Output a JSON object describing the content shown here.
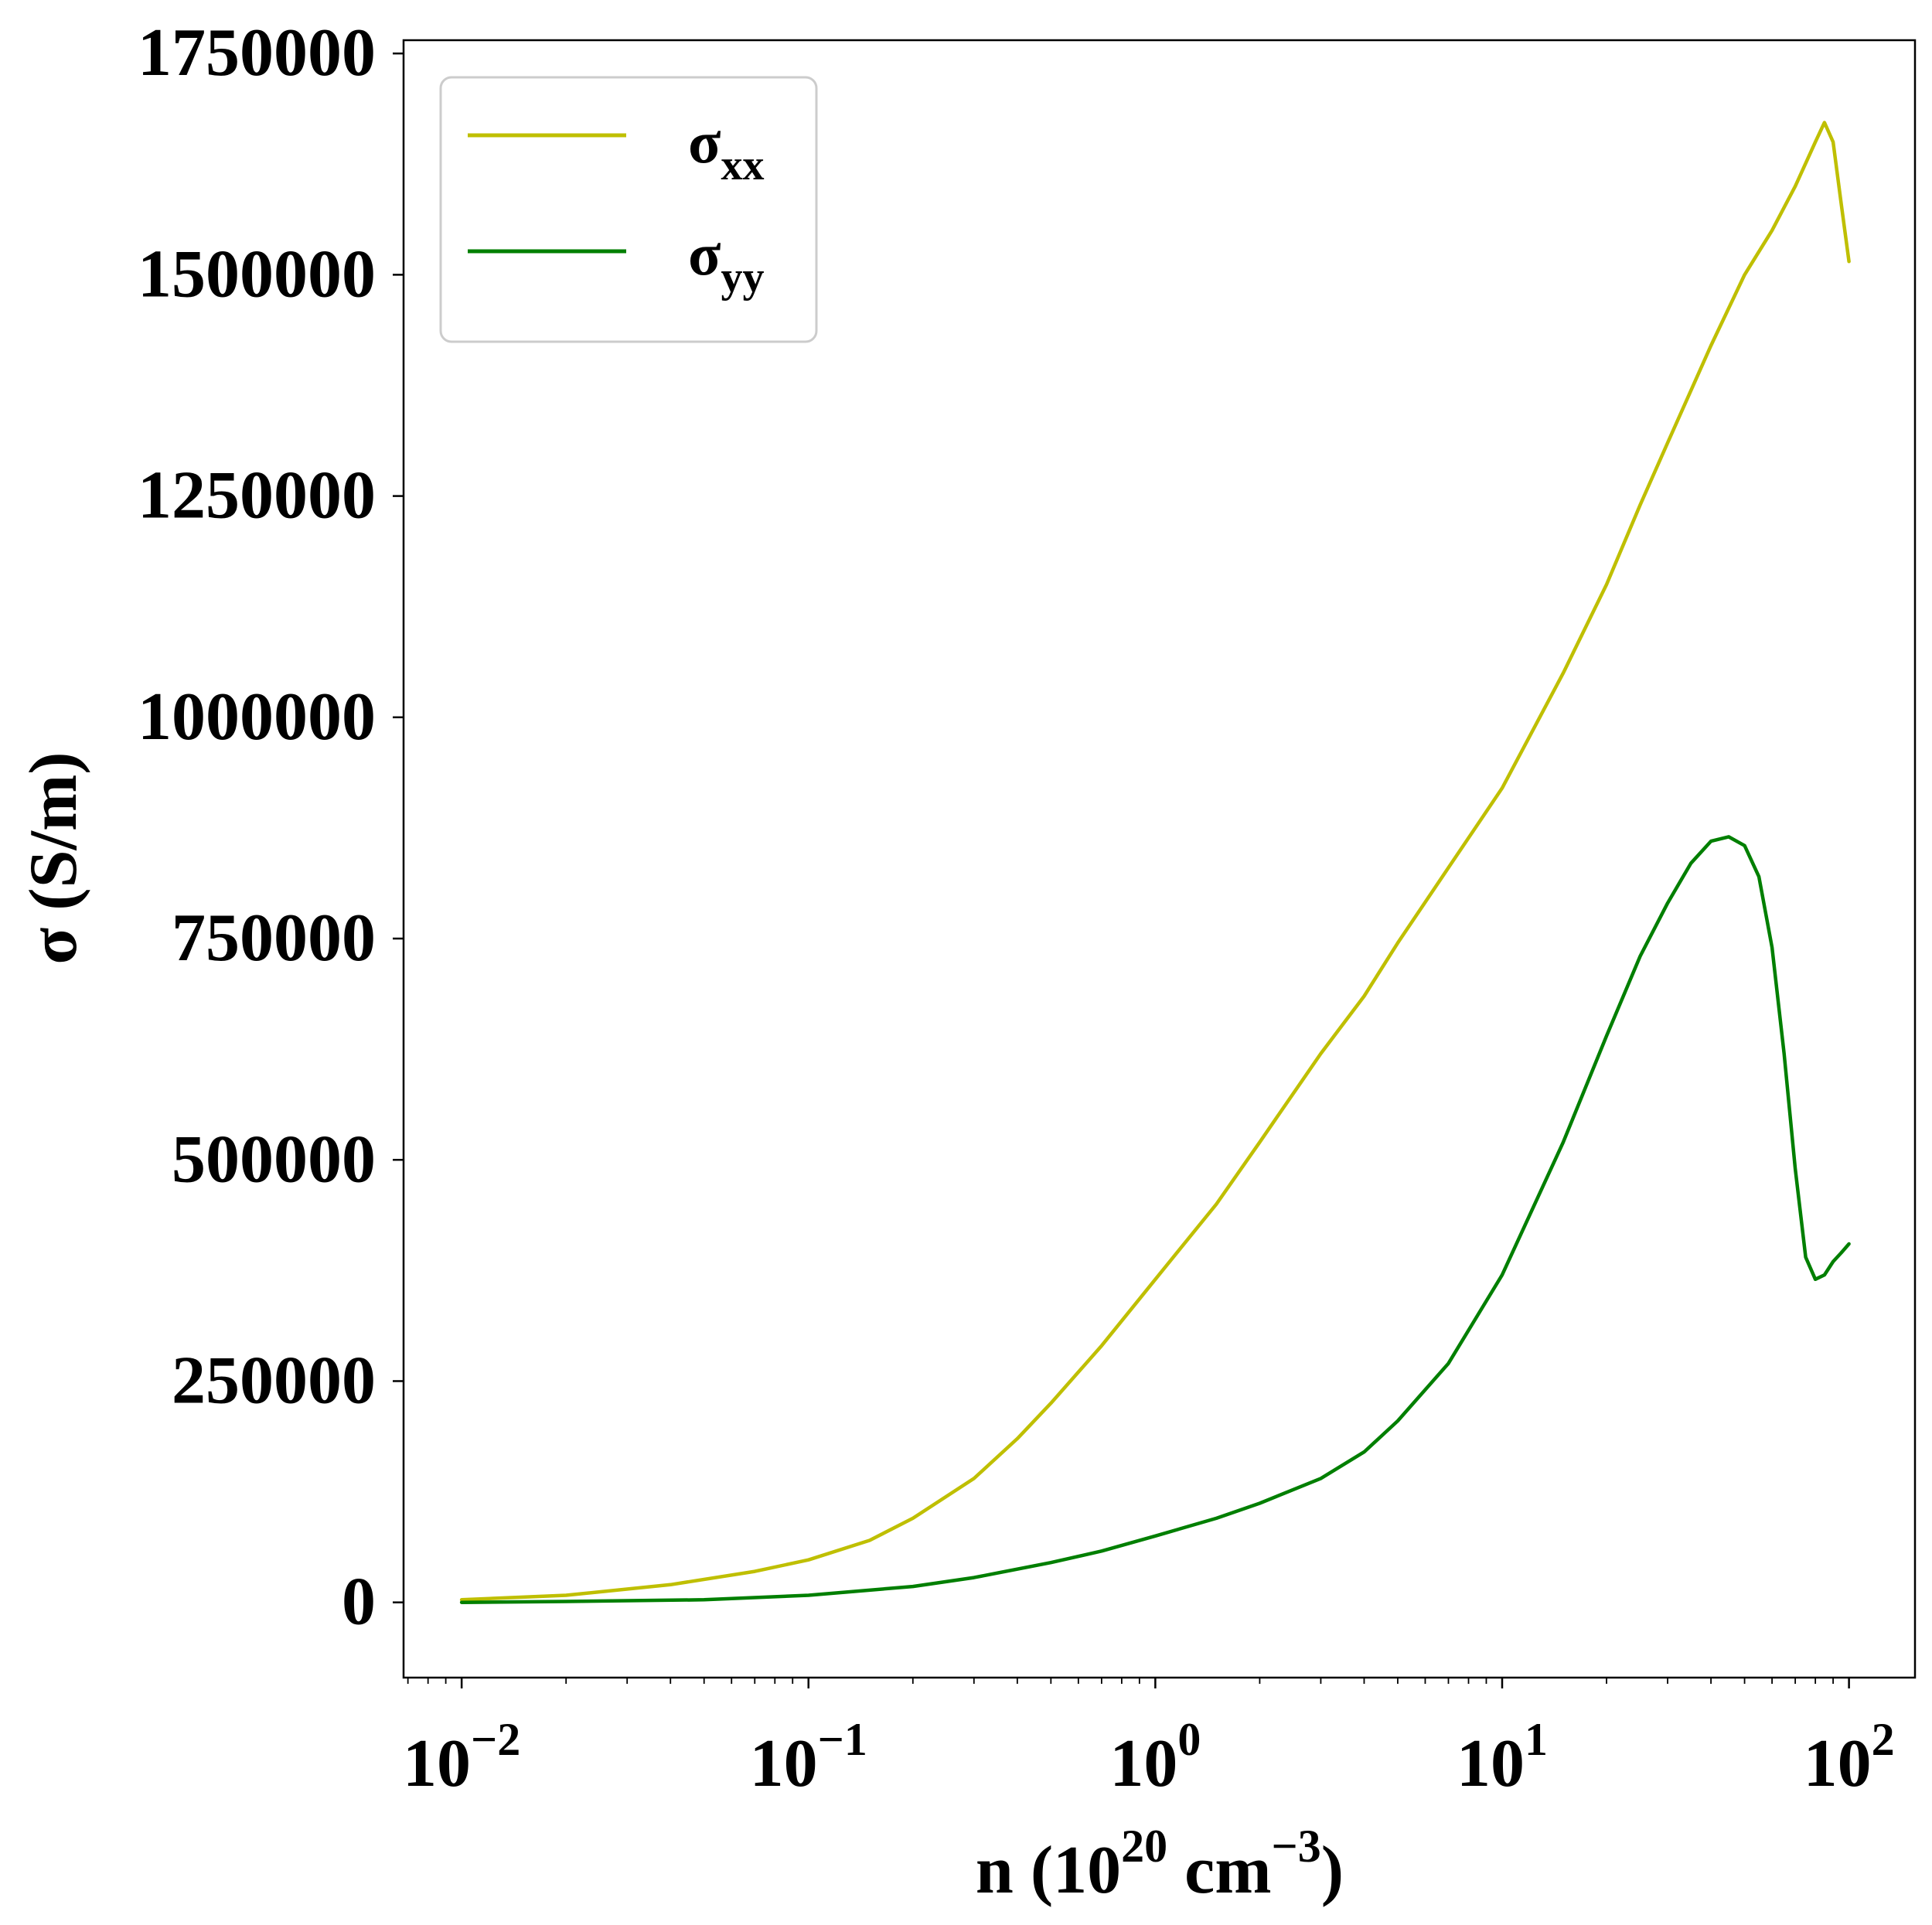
{
  "chart_data": {
    "type": "line",
    "xscale": "log",
    "xlim": [
      0.0068,
      155
    ],
    "ylim": [
      -85000,
      1765000
    ],
    "xlabel": {
      "base": "n (10",
      "exp": "20",
      "mid": " cm",
      "exp2": "−3",
      "end": ")"
    },
    "ylabel": "σ (S/m)",
    "x_ticks": [
      {
        "value": 0.01,
        "base": "10",
        "exp": "−2"
      },
      {
        "value": 0.1,
        "base": "10",
        "exp": "−1"
      },
      {
        "value": 1,
        "base": "10",
        "exp": "0"
      },
      {
        "value": 10,
        "base": "10",
        "exp": "1"
      },
      {
        "value": 100,
        "base": "10",
        "exp": "2"
      }
    ],
    "y_ticks": [
      {
        "value": 0,
        "label": "0"
      },
      {
        "value": 250000,
        "label": "250000"
      },
      {
        "value": 500000,
        "label": "500000"
      },
      {
        "value": 750000,
        "label": "750000"
      },
      {
        "value": 1000000,
        "label": "1000000"
      },
      {
        "value": 1250000,
        "label": "1250000"
      },
      {
        "value": 1500000,
        "label": "1500000"
      },
      {
        "value": 1750000,
        "label": "1750000"
      }
    ],
    "grid": false,
    "legend_position": "top-left",
    "series": [
      {
        "name": "σ",
        "subscript": "xx",
        "color": "#bfbf00",
        "x": [
          0.01,
          0.02,
          0.04,
          0.07,
          0.1,
          0.15,
          0.2,
          0.3,
          0.4,
          0.5,
          0.7,
          1,
          1.5,
          2,
          3,
          4,
          5,
          7,
          10,
          15,
          20,
          25,
          30,
          40,
          50,
          60,
          70,
          80,
          85,
          90,
          95,
          100
        ],
        "y": [
          3000,
          8000,
          20000,
          35000,
          48000,
          70000,
          95000,
          140000,
          185000,
          225000,
          290000,
          365000,
          450000,
          520000,
          620000,
          685000,
          745000,
          830000,
          920000,
          1050000,
          1150000,
          1240000,
          1310000,
          1420000,
          1500000,
          1550000,
          1600000,
          1650000,
          1672000,
          1650000,
          1580000,
          1515000
        ]
      },
      {
        "name": "σ",
        "subscript": "yy",
        "color": "#007f00",
        "x": [
          0.01,
          0.02,
          0.05,
          0.1,
          0.2,
          0.3,
          0.5,
          0.7,
          1,
          1.5,
          2,
          3,
          4,
          5,
          7,
          10,
          15,
          20,
          25,
          30,
          35,
          40,
          45,
          50,
          55,
          60,
          65,
          70,
          75,
          80,
          85,
          90,
          95,
          100
        ],
        "y": [
          0,
          1000,
          3000,
          8000,
          18000,
          28000,
          45000,
          58000,
          75000,
          95000,
          112000,
          140000,
          170000,
          205000,
          270000,
          370000,
          520000,
          640000,
          730000,
          790000,
          835000,
          860000,
          865000,
          855000,
          820000,
          740000,
          620000,
          490000,
          390000,
          365000,
          370000,
          385000,
          395000,
          405000
        ]
      }
    ]
  }
}
